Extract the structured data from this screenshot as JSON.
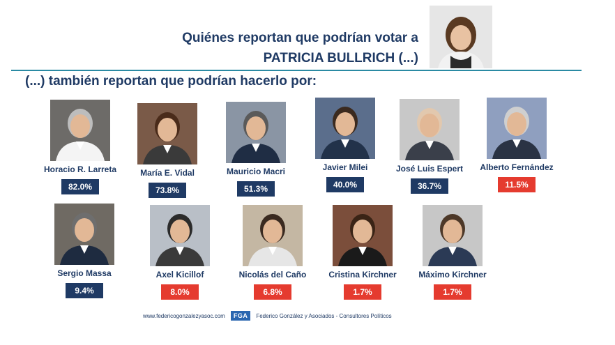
{
  "header": {
    "title_line1": "Quiénes reportan que podrían votar a",
    "title_line2": "PATRICIA BULLRICH (...)"
  },
  "subtitle": "(...) también reportan que podrían hacerlo por:",
  "colors": {
    "dark_badge": "#1f3a64",
    "red_badge": "#e53b2f",
    "text": "#1f3a64"
  },
  "candidates": [
    {
      "name": "Horacio R. Larreta",
      "value": "82.0%",
      "color": "#1f3a64"
    },
    {
      "name": "María E. Vidal",
      "value": "73.8%",
      "color": "#1f3a64"
    },
    {
      "name": "Mauricio Macri",
      "value": "51.3%",
      "color": "#1f3a64"
    },
    {
      "name": "Javier Milei",
      "value": "40.0%",
      "color": "#1f3a64"
    },
    {
      "name": "José Luis Espert",
      "value": "36.7%",
      "color": "#1f3a64"
    },
    {
      "name": "Alberto Fernández",
      "value": "11.5%",
      "color": "#e53b2f"
    },
    {
      "name": "Sergio Massa",
      "value": "9.4%",
      "color": "#1f3a64"
    },
    {
      "name": "Axel Kicillof",
      "value": "8.0%",
      "color": "#e53b2f"
    },
    {
      "name": "Nicolás del Caño",
      "value": "6.8%",
      "color": "#e53b2f"
    },
    {
      "name": "Cristina Kirchner",
      "value": "1.7%",
      "color": "#e53b2f"
    },
    {
      "name": "Máximo Kirchner",
      "value": "1.7%",
      "color": "#e53b2f"
    }
  ],
  "footer": {
    "website": "www.federicogonzalezyasoc.com",
    "logo": "FGA",
    "company": "Federico González y Asociados - Consultores Políticos"
  }
}
